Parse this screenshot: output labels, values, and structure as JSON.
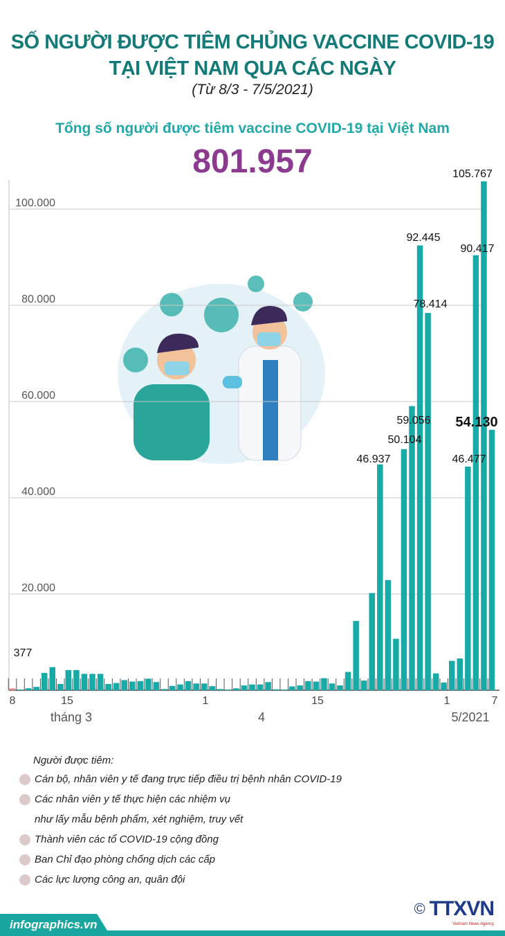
{
  "header": {
    "title_line1": "SỐ NGƯỜI ĐƯỢC TIÊM CHỦNG VACCINE COVID-19",
    "title_line2": "TẠI VIỆT NAM QUA CÁC NGÀY",
    "subtitle": "(Từ 8/3 -  7/5/2021)",
    "total_label": "Tổng số người được tiêm vaccine COVID-19 tại Việt Nam",
    "total_value": "801.957"
  },
  "chart_data": {
    "type": "bar",
    "ylim": [
      0,
      110000
    ],
    "yticks": [
      "20.000",
      "40.000",
      "60.000",
      "80.000",
      "100.000"
    ],
    "grid": true,
    "bar_color": "#17aaa6",
    "start_date": "2021-03-08",
    "end_date": "2021-05-07",
    "x_tick_labels": [
      "8",
      "15",
      "1",
      "15",
      "1",
      "7"
    ],
    "month_labels": [
      "tháng 3",
      "4",
      "5/2021"
    ],
    "values": [
      377,
      50,
      400,
      700,
      3600,
      4800,
      1300,
      4200,
      4200,
      3400,
      3400,
      3400,
      1300,
      1500,
      2100,
      1800,
      1900,
      2400,
      1700,
      250,
      900,
      1200,
      1900,
      1400,
      1400,
      850,
      250,
      50,
      400,
      1000,
      1200,
      1200,
      1700,
      200,
      100,
      800,
      1000,
      1900,
      1800,
      2500,
      1400,
      1000,
      3800,
      14400,
      2000,
      20200,
      46937,
      22900,
      10700,
      50104,
      59056,
      92445,
      78414,
      3500,
      1600,
      6100,
      6600,
      46477,
      90417,
      105767,
      54130
    ],
    "data_labels": [
      {
        "date": "8/3",
        "text": "377"
      },
      {
        "date": "23/4",
        "text": "46.937"
      },
      {
        "date": "26/4",
        "text": "50.104"
      },
      {
        "date": "27/4",
        "text": "59.056"
      },
      {
        "date": "28/4",
        "text": "92.445"
      },
      {
        "date": "29/4",
        "text": "78.414"
      },
      {
        "date": "4/5",
        "text": "46.477"
      },
      {
        "date": "5/5",
        "text": "90.417"
      },
      {
        "date": "6/5",
        "text": "105.767"
      },
      {
        "date": "7/5",
        "text": "54.130"
      }
    ]
  },
  "legend": {
    "heading": "Người được tiêm:",
    "items": [
      "Cán bộ, nhân viên y tế đang trực tiếp điều trị bệnh nhân COVID-19",
      "Các nhân viên y tế thực hiện các nhiệm vụ",
      "Thành viên các tổ COVID-19 cộng đồng",
      "Ban Chỉ đạo phòng chống dịch các cấp",
      "Các lực lượng công an, quân đội"
    ],
    "item2_continuation": "như lấy mẫu bệnh phẩm, xét nghiệm, truy vết"
  },
  "footer": {
    "site": "infographics.vn",
    "copyright": "©",
    "agency_logo": "TTXVN",
    "agency_sub": "Vietnam News Agency"
  }
}
